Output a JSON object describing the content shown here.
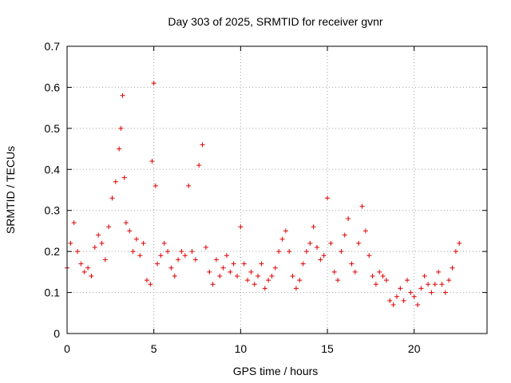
{
  "chart_data": {
    "type": "scatter",
    "title": "Day 303 of 2025, SRMTID for receiver gvnr",
    "xlabel": "GPS time / hours",
    "ylabel": "SRMTID / TECUs",
    "xlim": [
      0,
      24.2
    ],
    "ylim": [
      0,
      0.7
    ],
    "xticks": [
      0,
      5,
      10,
      15,
      20
    ],
    "xtick_labels": [
      "0",
      "5",
      "10",
      "15",
      "20"
    ],
    "yticks": [
      0,
      0.1,
      0.2,
      0.3,
      0.4,
      0.5,
      0.6,
      0.7
    ],
    "ytick_labels": [
      "0",
      "0.1",
      "0.2",
      "0.3",
      "0.4",
      "0.5",
      "0.6",
      "0.7"
    ],
    "grid": true,
    "marker": "+",
    "color": "#e00000",
    "series": [
      {
        "name": "SRMTID",
        "x": [
          0.0,
          0.2,
          0.4,
          0.6,
          0.8,
          1.0,
          1.2,
          1.4,
          1.6,
          1.8,
          2.0,
          2.2,
          2.4,
          2.6,
          2.8,
          3.0,
          3.1,
          3.2,
          3.3,
          3.4,
          3.6,
          3.8,
          4.0,
          4.2,
          4.4,
          4.6,
          4.8,
          4.9,
          5.0,
          5.1,
          5.2,
          5.4,
          5.6,
          5.8,
          6.0,
          6.2,
          6.4,
          6.6,
          6.8,
          7.0,
          7.2,
          7.4,
          7.6,
          7.8,
          8.0,
          8.2,
          8.4,
          8.6,
          8.8,
          9.0,
          9.2,
          9.4,
          9.6,
          9.8,
          10.0,
          10.2,
          10.4,
          10.6,
          10.8,
          11.0,
          11.2,
          11.4,
          11.6,
          11.8,
          12.0,
          12.2,
          12.4,
          12.6,
          12.8,
          13.0,
          13.2,
          13.4,
          13.6,
          13.8,
          14.0,
          14.2,
          14.4,
          14.6,
          14.8,
          15.0,
          15.2,
          15.4,
          15.6,
          15.8,
          16.0,
          16.2,
          16.4,
          16.6,
          16.8,
          17.0,
          17.2,
          17.4,
          17.6,
          17.8,
          18.0,
          18.2,
          18.4,
          18.6,
          18.8,
          19.0,
          19.2,
          19.4,
          19.6,
          19.8,
          20.0,
          20.2,
          20.4,
          20.6,
          20.8,
          21.0,
          21.2,
          21.4,
          21.6,
          21.8,
          22.0,
          22.2,
          22.4,
          22.6
        ],
        "y": [
          0.16,
          0.22,
          0.27,
          0.2,
          0.17,
          0.15,
          0.16,
          0.14,
          0.21,
          0.24,
          0.22,
          0.18,
          0.26,
          0.33,
          0.37,
          0.45,
          0.5,
          0.58,
          0.38,
          0.27,
          0.25,
          0.2,
          0.23,
          0.19,
          0.22,
          0.13,
          0.12,
          0.42,
          0.61,
          0.36,
          0.17,
          0.19,
          0.22,
          0.2,
          0.16,
          0.14,
          0.18,
          0.2,
          0.19,
          0.36,
          0.2,
          0.18,
          0.41,
          0.46,
          0.21,
          0.15,
          0.12,
          0.18,
          0.14,
          0.16,
          0.19,
          0.15,
          0.17,
          0.14,
          0.26,
          0.17,
          0.13,
          0.15,
          0.12,
          0.14,
          0.17,
          0.11,
          0.13,
          0.14,
          0.16,
          0.2,
          0.23,
          0.25,
          0.2,
          0.14,
          0.11,
          0.13,
          0.17,
          0.2,
          0.22,
          0.26,
          0.21,
          0.18,
          0.19,
          0.33,
          0.22,
          0.15,
          0.13,
          0.2,
          0.24,
          0.28,
          0.17,
          0.15,
          0.22,
          0.31,
          0.25,
          0.19,
          0.14,
          0.12,
          0.15,
          0.14,
          0.13,
          0.08,
          0.07,
          0.09,
          0.11,
          0.08,
          0.13,
          0.1,
          0.09,
          0.07,
          0.11,
          0.14,
          0.12,
          0.1,
          0.12,
          0.15,
          0.12,
          0.1,
          0.13,
          0.16,
          0.2,
          0.22
        ]
      }
    ]
  }
}
